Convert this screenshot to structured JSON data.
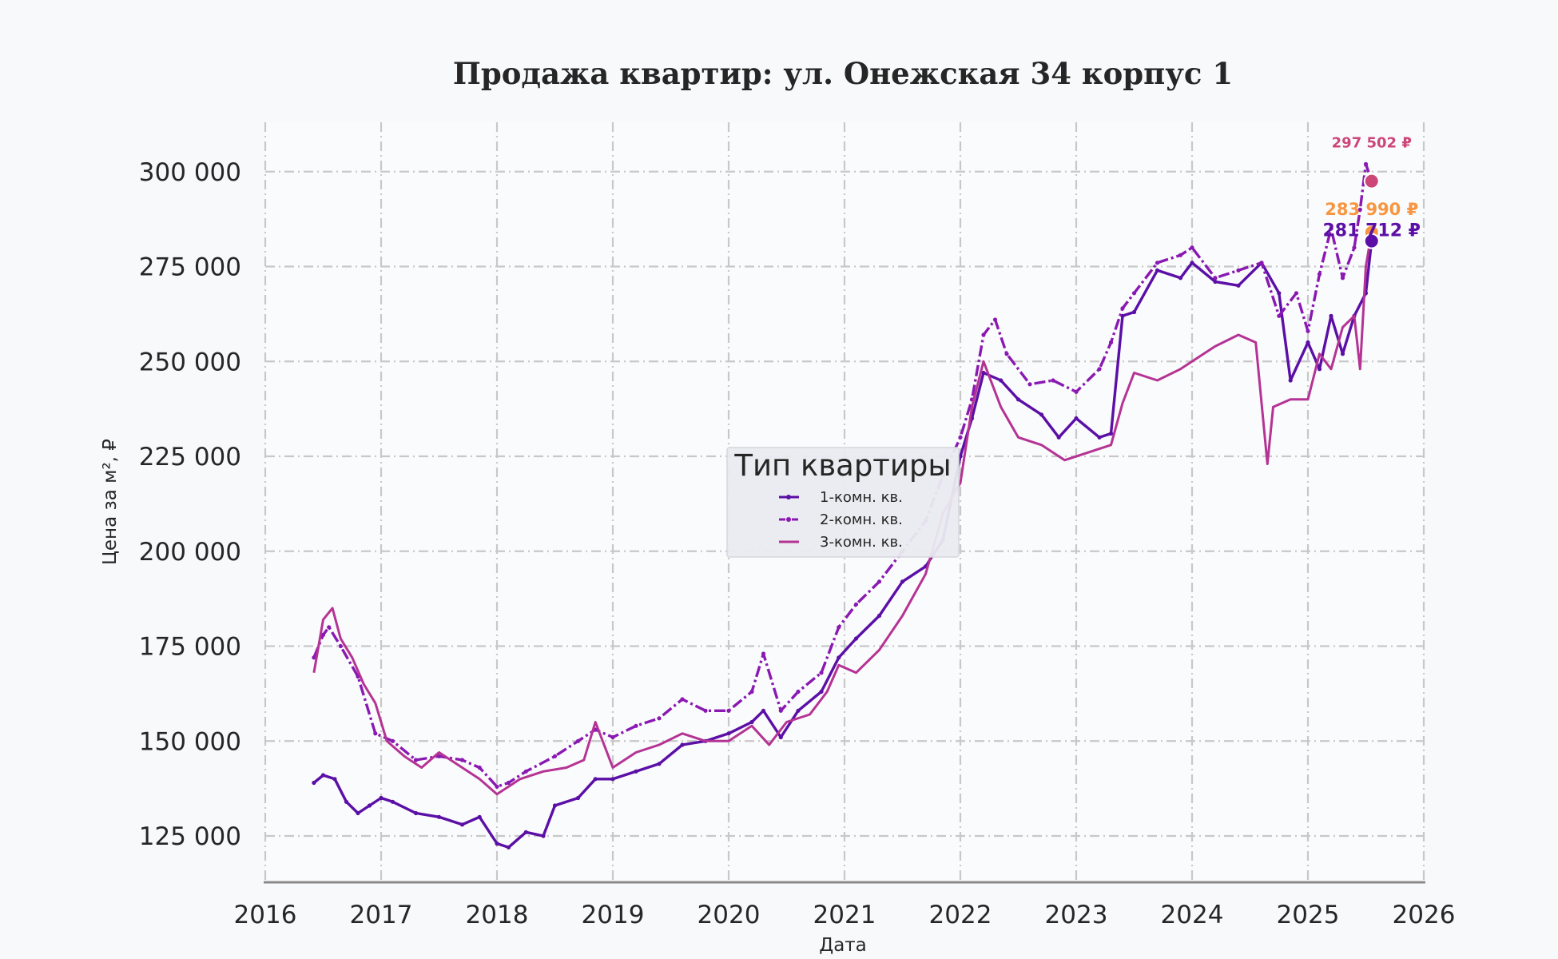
{
  "chart_data": {
    "type": "line",
    "title": "Продажа квартир: ул. Онежская 34 корпус 1",
    "xlabel": "Дата",
    "ylabel": "Цена за м², ₽",
    "xlim": [
      2016,
      2026
    ],
    "ylim": [
      113000,
      313000
    ],
    "xticks": [
      "2016",
      "2017",
      "2018",
      "2019",
      "2020",
      "2021",
      "2022",
      "2023",
      "2024",
      "2025",
      "2026"
    ],
    "yticks": [
      {
        "value": 125000,
        "label": "125 000"
      },
      {
        "value": 150000,
        "label": "150 000"
      },
      {
        "value": 175000,
        "label": "175 000"
      },
      {
        "value": 200000,
        "label": "200 000"
      },
      {
        "value": 225000,
        "label": "225 000"
      },
      {
        "value": 250000,
        "label": "250 000"
      },
      {
        "value": 275000,
        "label": "275 000"
      },
      {
        "value": 300000,
        "label": "300 000"
      }
    ],
    "grid": true,
    "legend": {
      "title": "Тип квартиры",
      "position": "center"
    },
    "series": [
      {
        "name": "1-комн. кв.",
        "color": "#5b0fa6",
        "style": "solid-markers",
        "x": [
          2016.42,
          2016.5,
          2016.6,
          2016.7,
          2016.8,
          2016.9,
          2017.0,
          2017.1,
          2017.3,
          2017.5,
          2017.7,
          2017.85,
          2018.0,
          2018.1,
          2018.25,
          2018.4,
          2018.5,
          2018.7,
          2018.85,
          2019.0,
          2019.2,
          2019.4,
          2019.6,
          2019.8,
          2020.0,
          2020.2,
          2020.3,
          2020.45,
          2020.6,
          2020.8,
          2020.95,
          2021.1,
          2021.3,
          2021.5,
          2021.7,
          2021.85,
          2022.0,
          2022.1,
          2022.2,
          2022.35,
          2022.5,
          2022.7,
          2022.85,
          2023.0,
          2023.2,
          2023.3,
          2023.4,
          2023.5,
          2023.7,
          2023.9,
          2024.0,
          2024.2,
          2024.4,
          2024.6,
          2024.75,
          2024.85,
          2025.0,
          2025.1,
          2025.2,
          2025.3,
          2025.4,
          2025.5,
          2025.55
        ],
        "values": [
          139000,
          141000,
          140000,
          134000,
          131000,
          133000,
          135000,
          134000,
          131000,
          130000,
          128000,
          130000,
          123000,
          122000,
          126000,
          125000,
          133000,
          135000,
          140000,
          140000,
          142000,
          144000,
          149000,
          150000,
          152000,
          155000,
          158000,
          151000,
          158000,
          163000,
          172000,
          177000,
          183000,
          192000,
          196000,
          203000,
          225000,
          235000,
          247000,
          245000,
          240000,
          236000,
          230000,
          235000,
          230000,
          231000,
          262000,
          263000,
          274000,
          272000,
          276000,
          271000,
          270000,
          276000,
          268000,
          245000,
          255000,
          248000,
          262000,
          252000,
          262000,
          268000,
          281712
        ]
      },
      {
        "name": "2-комн. кв.",
        "color": "#8a18b2",
        "style": "dash-dot-markers",
        "x": [
          2016.42,
          2016.5,
          2016.55,
          2016.65,
          2016.8,
          2016.95,
          2017.1,
          2017.3,
          2017.5,
          2017.7,
          2017.85,
          2018.0,
          2018.1,
          2018.25,
          2018.5,
          2018.7,
          2018.85,
          2019.0,
          2019.2,
          2019.4,
          2019.6,
          2019.8,
          2020.0,
          2020.2,
          2020.3,
          2020.45,
          2020.6,
          2020.8,
          2020.95,
          2021.1,
          2021.3,
          2021.5,
          2021.7,
          2021.85,
          2022.0,
          2022.1,
          2022.2,
          2022.3,
          2022.4,
          2022.6,
          2022.8,
          2023.0,
          2023.2,
          2023.3,
          2023.4,
          2023.5,
          2023.7,
          2023.9,
          2024.0,
          2024.2,
          2024.4,
          2024.6,
          2024.75,
          2024.9,
          2025.0,
          2025.1,
          2025.2,
          2025.3,
          2025.4,
          2025.45,
          2025.5,
          2025.55
        ],
        "values": [
          172000,
          178000,
          180000,
          175000,
          167000,
          152000,
          150000,
          145000,
          146000,
          145000,
          143000,
          138000,
          139000,
          142000,
          146000,
          150000,
          153000,
          151000,
          154000,
          156000,
          161000,
          158000,
          158000,
          163000,
          173000,
          158000,
          163000,
          168000,
          180000,
          186000,
          192000,
          200000,
          208000,
          220000,
          230000,
          240000,
          257000,
          261000,
          252000,
          244000,
          245000,
          242000,
          248000,
          255000,
          264000,
          268000,
          276000,
          278000,
          280000,
          272000,
          274000,
          276000,
          262000,
          268000,
          258000,
          273000,
          285000,
          272000,
          280000,
          290000,
          302000,
          297502
        ]
      },
      {
        "name": "3-комн. кв.",
        "color": "#b43394",
        "style": "solid",
        "x": [
          2016.42,
          2016.5,
          2016.58,
          2016.65,
          2016.75,
          2016.85,
          2016.95,
          2017.05,
          2017.2,
          2017.35,
          2017.5,
          2017.7,
          2017.85,
          2018.0,
          2018.2,
          2018.4,
          2018.6,
          2018.75,
          2018.85,
          2019.0,
          2019.2,
          2019.4,
          2019.6,
          2019.8,
          2020.0,
          2020.2,
          2020.35,
          2020.5,
          2020.7,
          2020.85,
          2020.95,
          2021.1,
          2021.3,
          2021.5,
          2021.7,
          2021.85,
          2022.0,
          2022.1,
          2022.2,
          2022.35,
          2022.5,
          2022.7,
          2022.9,
          2023.1,
          2023.3,
          2023.4,
          2023.5,
          2023.7,
          2023.9,
          2024.0,
          2024.2,
          2024.4,
          2024.55,
          2024.65,
          2024.7,
          2024.85,
          2025.0,
          2025.1,
          2025.2,
          2025.3,
          2025.4,
          2025.45,
          2025.5,
          2025.55
        ],
        "values": [
          168000,
          182000,
          185000,
          177000,
          172000,
          165000,
          160000,
          150000,
          146000,
          143000,
          147000,
          143000,
          140000,
          136000,
          140000,
          142000,
          143000,
          145000,
          155000,
          143000,
          147000,
          149000,
          152000,
          150000,
          150000,
          154000,
          149000,
          155000,
          157000,
          163000,
          170000,
          168000,
          174000,
          183000,
          194000,
          210000,
          218000,
          238000,
          250000,
          238000,
          230000,
          228000,
          224000,
          226000,
          228000,
          239000,
          247000,
          245000,
          248000,
          250000,
          254000,
          257000,
          255000,
          223000,
          238000,
          240000,
          240000,
          252000,
          248000,
          259000,
          262000,
          248000,
          275000,
          283990
        ]
      }
    ],
    "annotations": [
      {
        "label": "297 502 ₽",
        "value": 297502,
        "x": 2025.55,
        "color": "#cc4778"
      },
      {
        "label": "283 990 ₽",
        "value": 283990,
        "x": 2025.55,
        "color": "#f89540"
      },
      {
        "label": "281 712 ₽",
        "value": 281712,
        "x": 2025.55,
        "color": "#5b0fa6"
      }
    ]
  }
}
